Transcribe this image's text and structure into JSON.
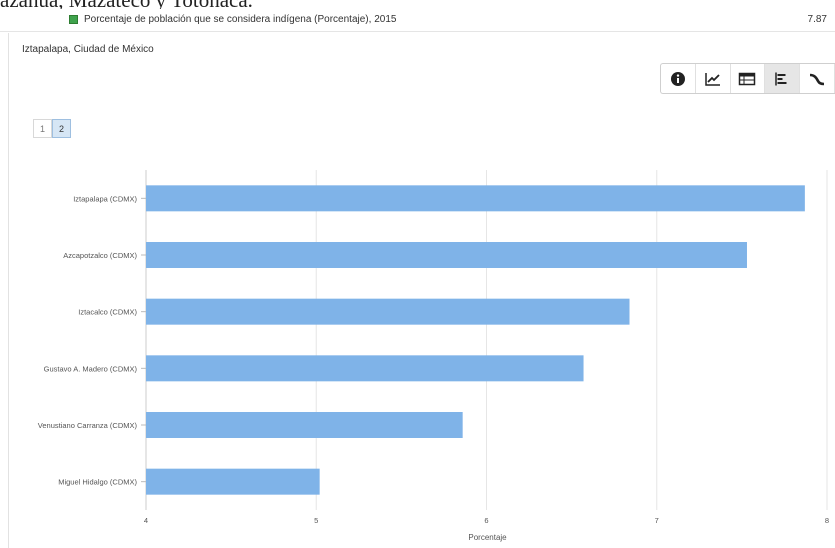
{
  "page_top_text": "azahua, Mazateco y Totonaca.",
  "legend": {
    "label": "Porcentaje de población que se considera indígena (Porcentaje), 2015",
    "value": "7.87",
    "swatch_color": "#3fa34d"
  },
  "place_title": "Iztapalapa, Ciudad de México",
  "toolbar": {
    "buttons": [
      {
        "icon": "info-icon"
      },
      {
        "icon": "line-chart-icon"
      },
      {
        "icon": "table-icon"
      },
      {
        "icon": "bar-chart-icon",
        "active": true
      },
      {
        "icon": "curve-icon"
      }
    ]
  },
  "pager": {
    "pages": [
      "1",
      "2"
    ],
    "active": "2"
  },
  "chart_data": {
    "type": "bar",
    "orientation": "horizontal",
    "categories": [
      "Iztapalapa (CDMX)",
      "Azcapotzalco (CDMX)",
      "Iztacalco (CDMX)",
      "Gustavo A. Madero (CDMX)",
      "Venustiano Carranza (CDMX)",
      "Miguel Hidalgo (CDMX)"
    ],
    "values": [
      7.87,
      7.53,
      6.84,
      6.57,
      5.86,
      5.02
    ],
    "xlabel": "Porcentaje",
    "xlim": [
      4,
      8
    ],
    "xticks": [
      "4",
      "5",
      "6",
      "7",
      "8"
    ],
    "grid": true,
    "bar_color": "#7fb3e8"
  }
}
